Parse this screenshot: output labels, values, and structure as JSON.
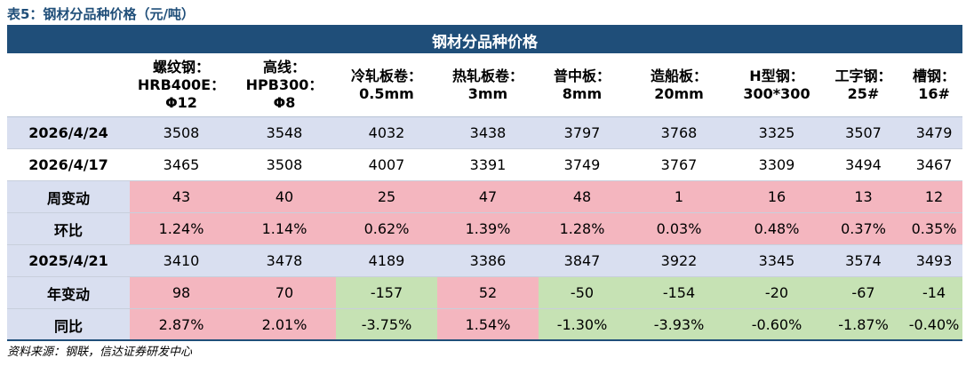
{
  "caption": "表5：钢材分品种价格（元/吨）",
  "table_title": "钢材分品种价格",
  "columns": [
    {
      "line1": "螺纹钢：",
      "line2": "HRB400E：",
      "line3": "Φ12"
    },
    {
      "line1": "高线：",
      "line2": "HPB300：",
      "line3": "Φ8"
    },
    {
      "line1": "冷轧板卷：",
      "line2": "0.5mm"
    },
    {
      "line1": "热轧板卷：",
      "line2": "3mm"
    },
    {
      "line1": "普中板：",
      "line2": "8mm"
    },
    {
      "line1": "造船板：",
      "line2": "20mm"
    },
    {
      "line1": "H型钢：",
      "line2": "300*300"
    },
    {
      "line1": "工字钢：",
      "line2": "25#"
    },
    {
      "line1": "槽钢：",
      "line2": "16#"
    }
  ],
  "rows": [
    {
      "label": "2026/4/24",
      "style": "date-lav",
      "values": [
        "3508",
        "3548",
        "4032",
        "3438",
        "3797",
        "3768",
        "3325",
        "3507",
        "3479"
      ]
    },
    {
      "label": "2026/4/17",
      "style": "date-white",
      "values": [
        "3465",
        "3508",
        "4007",
        "3391",
        "3749",
        "3767",
        "3309",
        "3494",
        "3467"
      ]
    },
    {
      "label": "周变动",
      "style": "change",
      "values": [
        "43",
        "40",
        "25",
        "47",
        "48",
        "1",
        "16",
        "13",
        "12"
      ],
      "signs": [
        "pos",
        "pos",
        "pos",
        "pos",
        "pos",
        "pos",
        "pos",
        "pos",
        "pos"
      ]
    },
    {
      "label": "环比",
      "style": "change",
      "values": [
        "1.24%",
        "1.14%",
        "0.62%",
        "1.39%",
        "1.28%",
        "0.03%",
        "0.48%",
        "0.37%",
        "0.35%"
      ],
      "signs": [
        "pos",
        "pos",
        "pos",
        "pos",
        "pos",
        "pos",
        "pos",
        "pos",
        "pos"
      ]
    },
    {
      "label": "2025/4/21",
      "style": "date-lav",
      "values": [
        "3410",
        "3478",
        "4189",
        "3386",
        "3847",
        "3922",
        "3345",
        "3574",
        "3493"
      ]
    },
    {
      "label": "年变动",
      "style": "change",
      "values": [
        "98",
        "70",
        "-157",
        "52",
        "-50",
        "-154",
        "-20",
        "-67",
        "-14"
      ],
      "signs": [
        "pos",
        "pos",
        "neg",
        "pos",
        "neg",
        "neg",
        "neg",
        "neg",
        "neg"
      ]
    },
    {
      "label": "同比",
      "style": "change",
      "values": [
        "2.87%",
        "2.01%",
        "-3.75%",
        "1.54%",
        "-1.30%",
        "-3.93%",
        "-0.60%",
        "-1.87%",
        "-0.40%"
      ],
      "signs": [
        "pos",
        "pos",
        "neg",
        "pos",
        "neg",
        "neg",
        "neg",
        "neg",
        "neg"
      ]
    }
  ],
  "colors": {
    "header_blue": "#1f4e79",
    "lavender": "#d9dff0",
    "increase_pink": "#f4b6bf",
    "decrease_green": "#c6e2b4"
  },
  "source": "资料来源：钢联，信达证券研发中心"
}
